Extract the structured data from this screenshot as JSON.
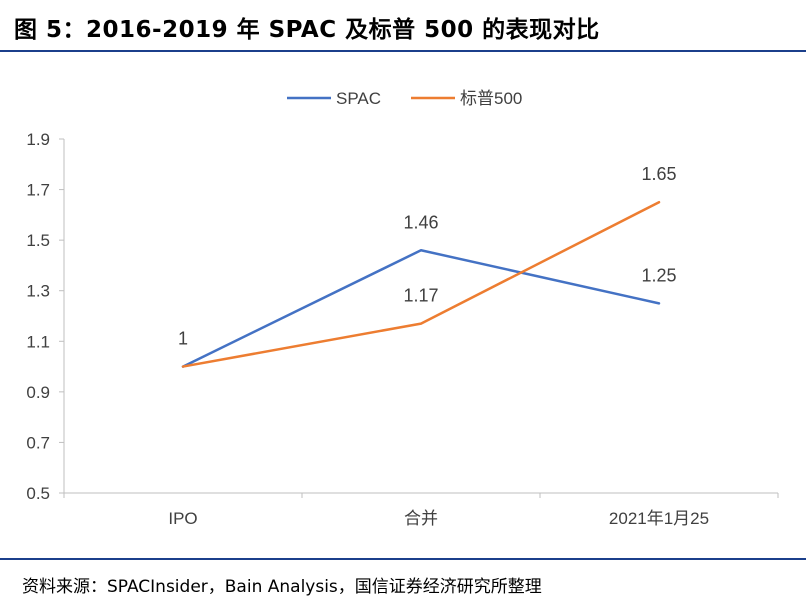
{
  "figure": {
    "title": "图 5：2016-2019 年 SPAC 及标普 500 的表现对比",
    "source": "资料来源：SPACInsider，Bain Analysis，国信证券经济研究所整理"
  },
  "colors": {
    "SPAC": "#4472c4",
    "标普500": "#ed7d31",
    "axis": "#bfbfbf",
    "text": "#404040",
    "rule": "#1b3f8b"
  },
  "chart_data": {
    "type": "line",
    "categories": [
      "IPO",
      "合并",
      "2021年1月25"
    ],
    "series": [
      {
        "name": "SPAC",
        "values": [
          1,
          1.46,
          1.25
        ],
        "labels": [
          "1",
          "1.46",
          "1.25"
        ]
      },
      {
        "name": "标普500",
        "values": [
          1,
          1.17,
          1.65
        ],
        "labels": [
          "",
          "1.17",
          "1.65"
        ]
      }
    ],
    "ylim": [
      0.5,
      1.9
    ],
    "yticks": [
      0.5,
      0.7,
      0.9,
      1.1,
      1.3,
      1.5,
      1.7,
      1.9
    ],
    "ytick_labels": [
      "0.5",
      "0.7",
      "0.9",
      "1.1",
      "1.3",
      "1.5",
      "1.7",
      "1.9"
    ],
    "grid": false,
    "legend": "top-center"
  }
}
